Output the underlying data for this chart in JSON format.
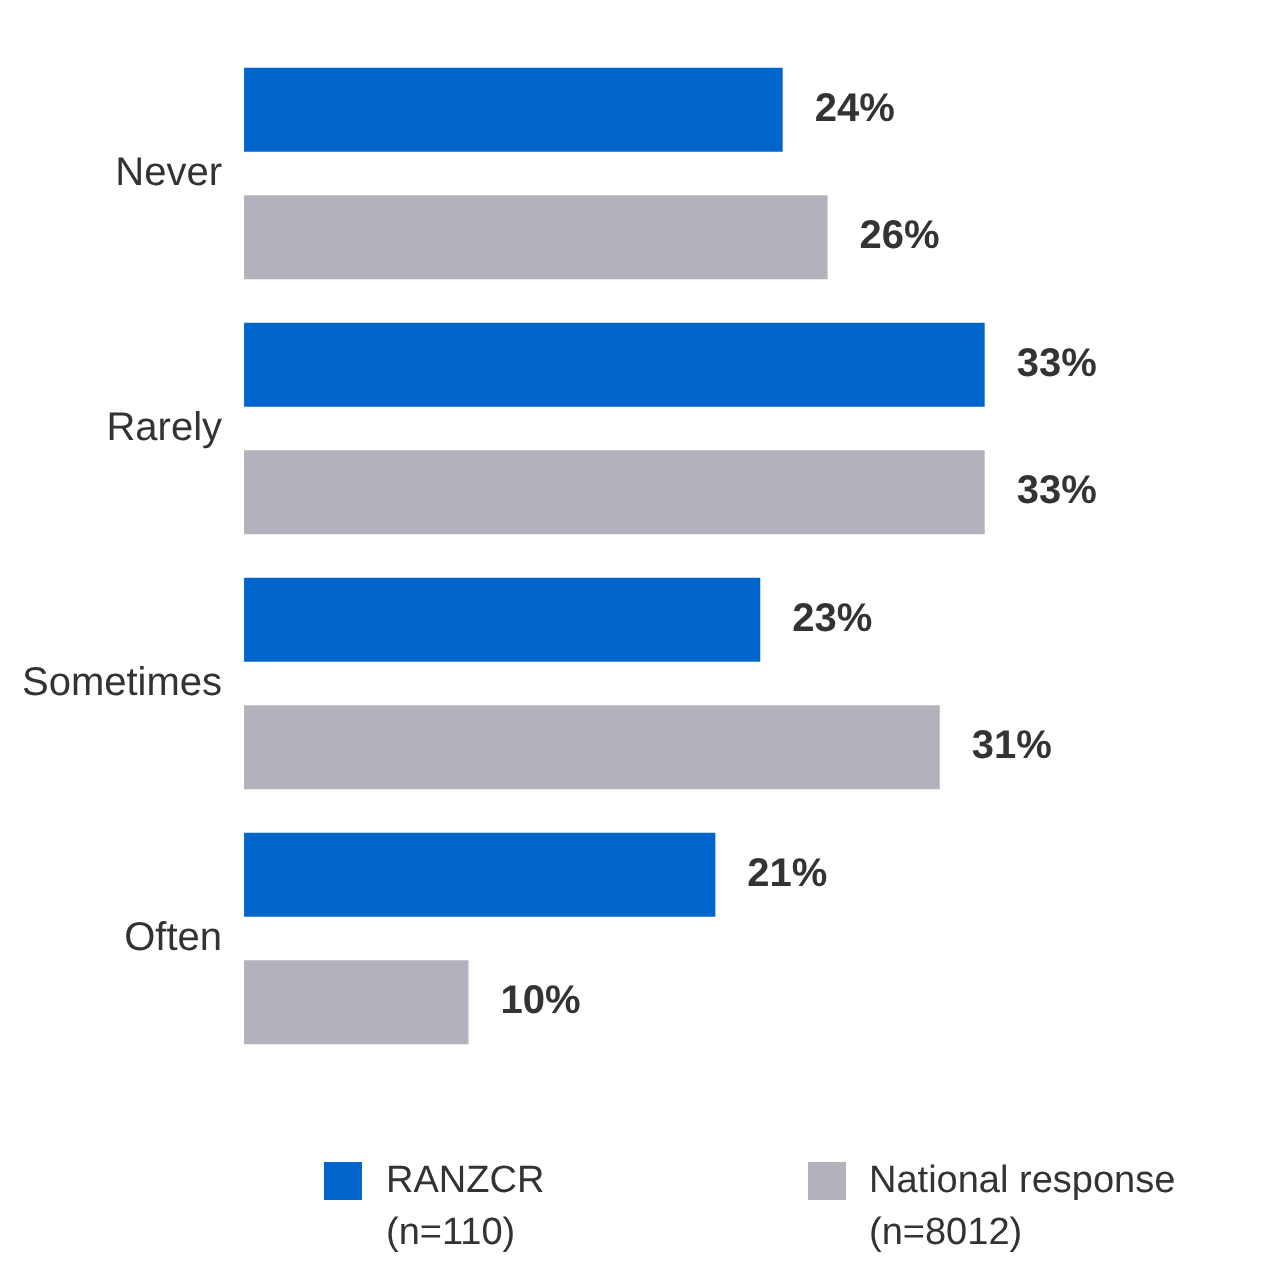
{
  "chart_data": {
    "type": "bar",
    "orientation": "horizontal",
    "categories": [
      "Never",
      "Rarely",
      "Sometimes",
      "Often"
    ],
    "series": [
      {
        "name": "RANZCR\n(n=110)",
        "color": "#0066cc",
        "values": [
          24,
          33,
          23,
          21
        ],
        "value_labels": [
          "24%",
          "33%",
          "23%",
          "21%"
        ]
      },
      {
        "name": "National response\n(n=8012)",
        "color": "#b2b2bc",
        "values": [
          26,
          33,
          31,
          10
        ],
        "value_labels": [
          "26%",
          "33%",
          "31%",
          "10%"
        ]
      }
    ],
    "legend": "bottom"
  }
}
